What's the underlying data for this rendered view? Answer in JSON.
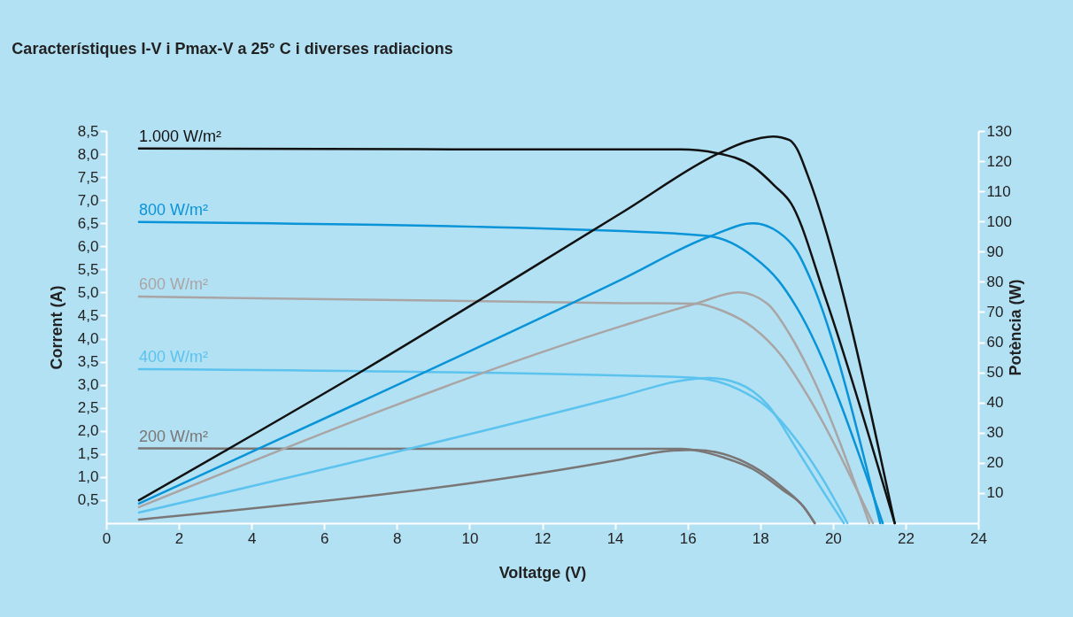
{
  "chart_data": {
    "type": "line",
    "title": "Característiques I-V i Pmax-V a 25° C i diverses radiacions",
    "xlabel": "Voltatge (V)",
    "ylabel": "Corrent (A)",
    "y2label": "Potència (W)",
    "xlim": [
      0,
      24
    ],
    "xticks": [
      0,
      2,
      4,
      6,
      8,
      10,
      12,
      14,
      16,
      18,
      20,
      22,
      24
    ],
    "ylim": [
      0,
      8.5
    ],
    "yticks": [
      {
        "value": 0.5,
        "label": "0,5"
      },
      {
        "value": 1,
        "label": "1,0"
      },
      {
        "value": 1.5,
        "label": "1,5"
      },
      {
        "value": 2,
        "label": "2,0"
      },
      {
        "value": 2.5,
        "label": "2,5"
      },
      {
        "value": 3,
        "label": "3,0"
      },
      {
        "value": 3.5,
        "label": "3,5"
      },
      {
        "value": 4,
        "label": "4,0"
      },
      {
        "value": 4.5,
        "label": "4,5"
      },
      {
        "value": 5,
        "label": "5,0"
      },
      {
        "value": 5.5,
        "label": "5,5"
      },
      {
        "value": 6,
        "label": "6,0"
      },
      {
        "value": 6.5,
        "label": "6,5"
      },
      {
        "value": 7,
        "label": "7,0"
      },
      {
        "value": 7.5,
        "label": "7,5"
      },
      {
        "value": 8,
        "label": "8,0"
      },
      {
        "value": 8.5,
        "label": "8,5"
      }
    ],
    "y2lim": [
      0,
      130
    ],
    "y2ticks": [
      10,
      20,
      30,
      40,
      50,
      60,
      70,
      80,
      90,
      100,
      110,
      120,
      130
    ],
    "series": [
      {
        "name": "1.000 W/m²",
        "color": "#111111",
        "x": [
          0.9,
          14.2,
          15.8,
          16.8,
          17.8,
          18.4,
          18.85,
          19.8,
          21.7
        ],
        "values": [
          8.12,
          8.1,
          8.1,
          8.02,
          7.73,
          7.31,
          6.93,
          4.87,
          0
        ]
      },
      {
        "color": "#111111",
        "axis": "y2",
        "x": [
          0.9,
          7.0,
          14.2,
          16.86,
          17.6,
          18.35,
          18.8,
          19.0,
          19.3,
          21.7
        ],
        "values": [
          7.6,
          50.1,
          103,
          122.6,
          126.4,
          128.2,
          127,
          124.3,
          115.5,
          0
        ]
      },
      {
        "name": "800 W/m²",
        "color": "#0a94d8",
        "x": [
          0.9,
          14.2,
          16.6,
          17.8,
          18.5,
          19.0,
          21.37
        ],
        "values": [
          6.53,
          6.33,
          6.22,
          5.78,
          5.26,
          4.68,
          0
        ]
      },
      {
        "color": "#0a94d8",
        "axis": "y2",
        "x": [
          0.9,
          7.0,
          14.2,
          16.6,
          17.8,
          18.5,
          19.0,
          19.4,
          21.3
        ],
        "values": [
          6.5,
          40.2,
          80.9,
          95,
          99.4,
          96.5,
          90.3,
          80.4,
          0
        ]
      },
      {
        "name": "600 W/m²",
        "color": "#aaa5a5",
        "x": [
          0.9,
          14.2,
          16.2,
          17.0,
          17.8,
          18.6,
          19.2,
          21.1
        ],
        "values": [
          4.91,
          4.77,
          4.76,
          4.59,
          4.24,
          3.61,
          2.9,
          0
        ]
      },
      {
        "color": "#aaa5a5",
        "axis": "y2",
        "x": [
          0.9,
          14.2,
          16.2,
          17.4,
          18.2,
          18.8,
          19.4,
          21.0
        ],
        "values": [
          5.3,
          65.4,
          72.7,
          76.5,
          72.7,
          62.8,
          49.3,
          0
        ]
      },
      {
        "name": "400 W/m²",
        "color": "#5bc3ee",
        "x": [
          0.9,
          14.2,
          16.2,
          17.4,
          18.2,
          19.0,
          19.7,
          20.4
        ],
        "values": [
          3.34,
          3.2,
          3.15,
          2.9,
          2.51,
          1.8,
          0.98,
          0
        ]
      },
      {
        "color": "#5bc3ee",
        "axis": "y2",
        "x": [
          0.9,
          14.2,
          15.8,
          16.6,
          17.4,
          18.2,
          19.0,
          19.7,
          20.3
        ],
        "values": [
          3.5,
          42.2,
          47.2,
          48.1,
          46.3,
          39.3,
          24.6,
          11.1,
          0
        ]
      },
      {
        "name": "200 W/m²",
        "color": "#7a7676",
        "x": [
          0.9,
          14.2,
          15.8,
          17.0,
          17.8,
          18.6,
          19.2,
          19.5
        ],
        "values": [
          1.62,
          1.61,
          1.61,
          1.42,
          1.17,
          0.73,
          0.35,
          0
        ]
      },
      {
        "color": "#7a7676",
        "axis": "y2",
        "x": [
          0.9,
          14.2,
          15.35,
          16.2,
          17.0,
          17.8,
          18.6,
          19.2,
          19.5
        ],
        "values": [
          1.2,
          21.2,
          23.8,
          24.3,
          22.9,
          18.8,
          12.0,
          5.3,
          0
        ]
      }
    ]
  }
}
